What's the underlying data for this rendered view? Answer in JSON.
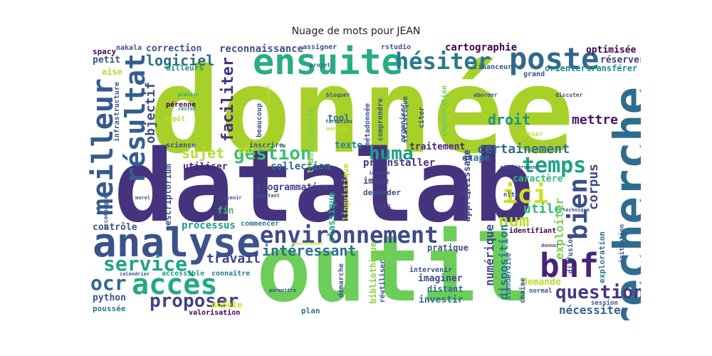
{
  "title": "Nuage de mots pour JEAN",
  "words": [
    {
      "text": "donnée",
      "color": "#a7d129"
    },
    {
      "text": "datalab",
      "color": "#45337e"
    },
    {
      "text": "outil",
      "color": "#6ccd59"
    },
    {
      "text": "recherche",
      "color": "#2f6d8e"
    },
    {
      "text": "analyse",
      "color": "#3b528b"
    },
    {
      "text": "ensuite",
      "color": "#27ad81"
    },
    {
      "text": "environnement",
      "color": "#3e4a89"
    },
    {
      "text": "poste",
      "color": "#31688e"
    },
    {
      "text": "accès",
      "color": "#22a884"
    },
    {
      "text": "bnf",
      "color": "#482475"
    },
    {
      "text": "résultat",
      "color": "#355e8d"
    },
    {
      "text": "hésiter",
      "color": "#2a788e"
    },
    {
      "text": "meilleur",
      "color": "#375a8c"
    },
    {
      "text": "temps",
      "color": "#1fa187"
    },
    {
      "text": "ici",
      "color": "#cde11d"
    },
    {
      "text": "bien",
      "color": "#3c4f8a"
    },
    {
      "text": "question",
      "color": "#443983"
    },
    {
      "text": "gestion",
      "color": "#40bd72"
    },
    {
      "text": "huma",
      "color": "#1f9e89"
    },
    {
      "text": "service",
      "color": "#20a386"
    },
    {
      "text": "proposer",
      "color": "#414487"
    },
    {
      "text": "num",
      "color": "#b8de29"
    },
    {
      "text": "ocr",
      "color": "#31688e"
    },
    {
      "text": "intéressant",
      "color": "#2c728e"
    },
    {
      "text": "faciliter",
      "color": "#46307e"
    },
    {
      "text": "logiciel",
      "color": "#2d708e"
    },
    {
      "text": "droit",
      "color": "#21918c"
    },
    {
      "text": "certainement",
      "color": "#2e6f8e"
    },
    {
      "text": "utile",
      "color": "#35b779"
    },
    {
      "text": "corpus",
      "color": "#3f4788"
    },
    {
      "text": "sujet",
      "color": "#b5de2b"
    },
    {
      "text": "objectif",
      "color": "#3e4c8a"
    },
    {
      "text": "mettre",
      "color": "#471365"
    },
    {
      "text": "travail",
      "color": "#404387"
    },
    {
      "text": "exploiter",
      "color": "#7ad151"
    },
    {
      "text": "numérique",
      "color": "#3f4889"
    },
    {
      "text": "disposition",
      "color": "#2b758e"
    },
    {
      "text": "nécessiter",
      "color": "#33628d"
    },
    {
      "text": "cartographie",
      "color": "#440154"
    },
    {
      "text": "reconnaissance",
      "color": "#3b528b"
    },
    {
      "text": "optimisée",
      "color": "#440154"
    },
    {
      "text": "correction",
      "color": "#3b528b"
    },
    {
      "text": "processus",
      "color": "#1f9a8a"
    },
    {
      "text": "traitement",
      "color": "#482677"
    },
    {
      "text": "contrôle",
      "color": "#3b528b"
    },
    {
      "text": "préinstaller",
      "color": "#46337f"
    },
    {
      "text": "collection",
      "color": "#2f6c8e"
    },
    {
      "text": "programmation",
      "color": "#404588"
    },
    {
      "text": "utiliser",
      "color": "#482475"
    },
    {
      "text": "pratique",
      "color": "#3b528b"
    },
    {
      "text": "imaginer",
      "color": "#3e4989"
    },
    {
      "text": "investir",
      "color": "#2f6b8e"
    },
    {
      "text": "distant",
      "color": "#2e6e8e"
    },
    {
      "text": "texte",
      "color": "#26828e"
    },
    {
      "text": "pdf",
      "color": "#bddf26"
    },
    {
      "text": "tool",
      "color": "#2a768e"
    },
    {
      "text": "fin",
      "color": "#3dbc74"
    },
    {
      "text": "python",
      "color": "#3b528b"
    },
    {
      "text": "petit",
      "color": "#3b528b"
    },
    {
      "text": "réserver",
      "color": "#443b84"
    },
    {
      "text": "orienter",
      "color": "#26828e"
    },
    {
      "text": "transférer",
      "color": "#21918c"
    },
    {
      "text": "étape",
      "color": "#2d708e"
    },
    {
      "text": "image",
      "color": "#414487"
    },
    {
      "text": "demande",
      "color": "#b8de29"
    },
    {
      "text": "modèle",
      "color": "#d2e21b"
    },
    {
      "text": "plan",
      "color": "#2c728e"
    },
    {
      "text": "valorisation",
      "color": "#440154"
    },
    {
      "text": "poussée",
      "color": "#2a788e"
    },
    {
      "text": "connaître",
      "color": "#2a788e"
    },
    {
      "text": "accessible",
      "color": "#1f9a8a"
    },
    {
      "text": "inscrire",
      "color": "#3b528b"
    },
    {
      "text": "science",
      "color": "#3b528b"
    },
    {
      "text": "commencer",
      "color": "#2a788e"
    },
    {
      "text": "bibliothèque",
      "color": "#86d549"
    },
    {
      "text": "réutiliser",
      "color": "#3b528b"
    },
    {
      "text": "démarche",
      "color": "#3b528b"
    },
    {
      "text": "classique",
      "color": "#22a884"
    },
    {
      "text": "linguistique",
      "color": "#bddf26"
    },
    {
      "text": "apprentissage",
      "color": "#414487"
    },
    {
      "text": "caractère",
      "color": "#35b779"
    },
    {
      "text": "diffusion",
      "color": "#3b528b"
    },
    {
      "text": "exploration",
      "color": "#2a788e"
    },
    {
      "text": "initiation",
      "color": "#3b528b"
    },
    {
      "text": "identifiant",
      "color": "#440154"
    },
    {
      "text": "chaîne",
      "color": "#3b528b"
    },
    {
      "text": "standardisé",
      "color": "#2a788e"
    },
    {
      "text": "intervenir",
      "color": "#3b528b"
    },
    {
      "text": "fois",
      "color": "#414487"
    },
    {
      "text": "demander",
      "color": "#3b528b"
    },
    {
      "text": "escriptorium",
      "color": "#3b528b"
    },
    {
      "text": "infrastructure",
      "color": "#3b528b"
    },
    {
      "text": "spacy",
      "color": "#440154"
    },
    {
      "text": "nakala",
      "color": "#3b528b"
    },
    {
      "text": "aise",
      "color": "#b5de2b"
    },
    {
      "text": "ailleurs",
      "color": "#21918c"
    },
    {
      "text": "assigner",
      "color": "#3b528b"
    },
    {
      "text": "rstudio",
      "color": "#3b528b"
    },
    {
      "text": "financeur",
      "color": "#3b528b"
    },
    {
      "text": "grand",
      "color": "#3b528b"
    },
    {
      "text": "segmentation",
      "color": "#6ccd59"
    },
    {
      "text": "transcription",
      "color": "#7ad151"
    },
    {
      "text": "métadonnée",
      "color": "#3b528b"
    },
    {
      "text": "comprendre",
      "color": "#3b528b"
    },
    {
      "text": "statistique",
      "color": "#3b528b"
    },
    {
      "text": "organiser",
      "color": "#3b528b"
    },
    {
      "text": "citer",
      "color": "#3b528b"
    },
    {
      "text": "beaucoup",
      "color": "#3b528b"
    },
    {
      "text": "pérenne",
      "color": "#440154"
    },
    {
      "text": "dépôt",
      "color": "#b5de2b"
    },
    {
      "text": "penser",
      "color": "#b8de29"
    },
    {
      "text": "nltk",
      "color": "#3b528b"
    },
    {
      "text": "session",
      "color": "#3b528b"
    },
    {
      "text": "normal",
      "color": "#3b528b"
    },
    {
      "text": "accompagner",
      "color": "#3b528b"
    },
    {
      "text": "projet",
      "color": "#3b528b"
    },
    {
      "text": "bloquer",
      "color": "#3b528b"
    },
    {
      "text": "aborder",
      "color": "#3b528b"
    },
    {
      "text": "discuter",
      "color": "#3b528b"
    },
    {
      "text": "plaisir",
      "color": "#22a884"
    },
    {
      "text": "rester",
      "color": "#21918c"
    },
    {
      "text": "formation",
      "color": "#3b528b"
    },
    {
      "text": "monsieur",
      "color": "#b5de2b"
    },
    {
      "text": "inverse",
      "color": "#3b528b"
    },
    {
      "text": "régulièrement",
      "color": "#3b528b"
    },
    {
      "text": "revenir",
      "color": "#3b528b"
    },
    {
      "text": "important",
      "color": "#3b528b"
    },
    {
      "text": "morel",
      "color": "#3b528b"
    },
    {
      "text": "lien",
      "color": "#3b528b"
    },
    {
      "text": "technique",
      "color": "#3b528b"
    },
    {
      "text": "donner",
      "color": "#3b528b"
    },
    {
      "text": "calendrier",
      "color": "#3b528b"
    },
    {
      "text": "permettre",
      "color": "#3b528b"
    },
    {
      "text": "concrètement",
      "color": "#b5de2b"
    },
    {
      "text": "spécifiquement",
      "color": "#b5de2b"
    }
  ]
}
